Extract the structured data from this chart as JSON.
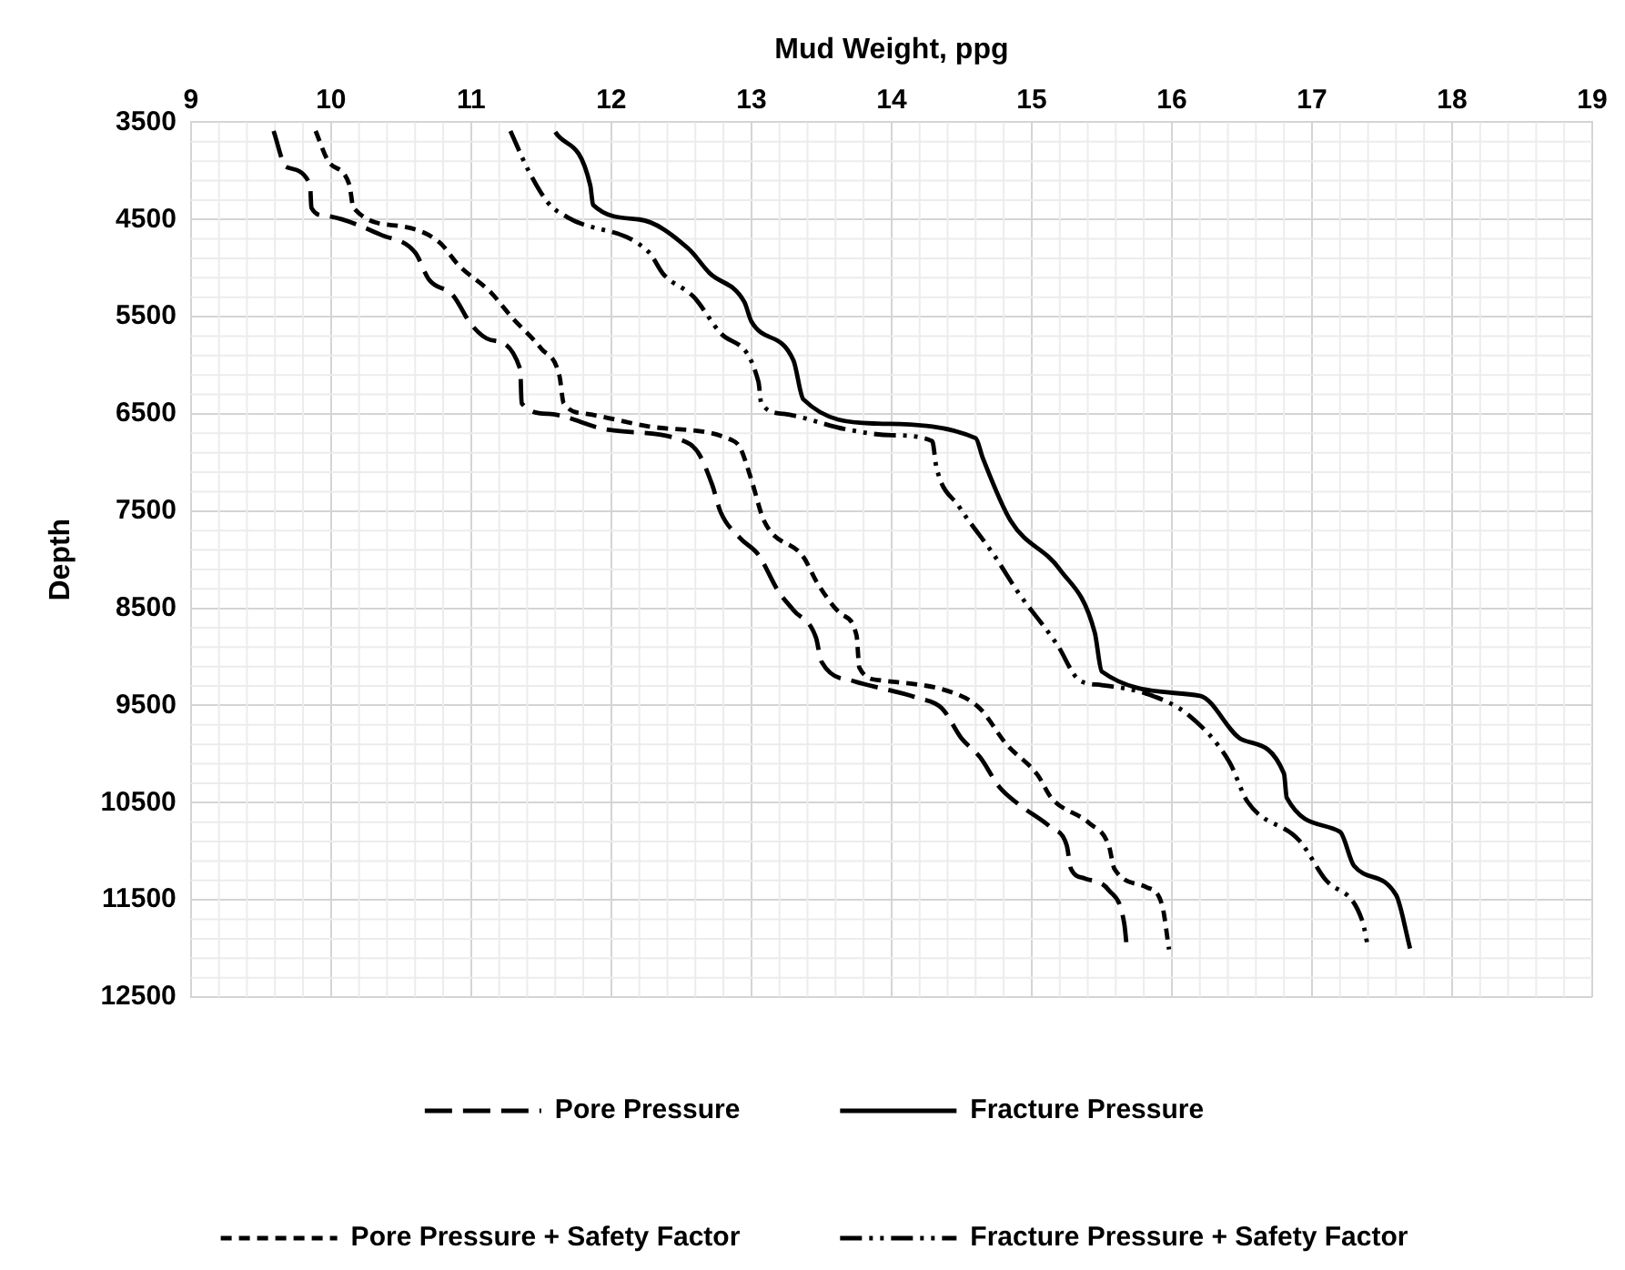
{
  "chart_data": {
    "type": "line",
    "xlabel": "Mud Weight, ppg",
    "ylabel": "Depth",
    "xlim": [
      9,
      19
    ],
    "xticks": [
      9,
      10,
      11,
      12,
      13,
      14,
      15,
      16,
      17,
      18,
      19
    ],
    "ylim": [
      12500,
      3500
    ],
    "yticks": [
      3500,
      4500,
      5500,
      6500,
      7500,
      8500,
      9500,
      10500,
      11500,
      12500
    ],
    "grid": true,
    "legend": "bottom",
    "marker": "none",
    "series": [
      {
        "name": "Pore Pressure",
        "color": "#000000",
        "line_style": "dashed",
        "x": [
          9.59,
          9.68,
          9.85,
          9.86,
          9.95,
          10.36,
          10.6,
          10.7,
          10.87,
          11.0,
          11.14,
          11.35,
          11.36,
          11.55,
          11.96,
          12.5,
          12.62,
          12.72,
          12.78,
          12.92,
          13.05,
          13.19,
          13.3,
          13.46,
          13.5,
          13.73,
          14.18,
          14.36,
          14.5,
          14.63,
          14.77,
          14.91,
          15.14,
          15.25,
          15.28,
          15.38,
          15.55,
          15.66,
          15.68
        ],
        "values": [
          3590,
          3960,
          4140,
          4380,
          4460,
          4660,
          4840,
          5120,
          5280,
          5580,
          5740,
          6040,
          6390,
          6500,
          6660,
          6770,
          6900,
          7230,
          7510,
          7780,
          7950,
          8320,
          8520,
          8800,
          9050,
          9250,
          9420,
          9530,
          9840,
          10030,
          10340,
          10520,
          10760,
          10940,
          11180,
          11280,
          11400,
          11740,
          12010
        ]
      },
      {
        "name": "Fracture Pressure",
        "color": "#000000",
        "line_style": "solid",
        "x": [
          11.6,
          11.85,
          11.87,
          12.2,
          12.55,
          12.7,
          12.95,
          13.0,
          13.3,
          13.37,
          13.9,
          14.6,
          14.65,
          14.85,
          15.2,
          15.45,
          15.5,
          16.2,
          16.5,
          16.8,
          16.82,
          17.2,
          17.3,
          17.6,
          17.7
        ],
        "values": [
          3600,
          4150,
          4350,
          4500,
          4800,
          5050,
          5350,
          5550,
          5950,
          6350,
          6600,
          6750,
          6950,
          7600,
          8100,
          8750,
          9150,
          9400,
          9850,
          10200,
          10450,
          10800,
          11150,
          11450,
          12000
        ]
      },
      {
        "name": "Pore Pressure + Safety Factor",
        "color": "#000000",
        "line_style": "dotted",
        "x": [
          9.89,
          9.98,
          10.13,
          10.16,
          10.5,
          10.77,
          10.91,
          11.14,
          11.28,
          11.5,
          11.63,
          11.66,
          11.82,
          12.27,
          12.86,
          12.92,
          13.0,
          13.09,
          13.37,
          13.47,
          13.64,
          13.75,
          13.77,
          13.91,
          14.46,
          14.63,
          14.82,
          15.04,
          15.14,
          15.41,
          15.55,
          15.59,
          15.82,
          15.93,
          15.98
        ],
        "values": [
          3590,
          3900,
          4140,
          4380,
          4570,
          4730,
          4970,
          5250,
          5490,
          5830,
          6110,
          6390,
          6500,
          6630,
          6770,
          6850,
          7180,
          7600,
          7970,
          8240,
          8560,
          8780,
          9110,
          9240,
          9380,
          9530,
          9900,
          10210,
          10450,
          10710,
          10940,
          11180,
          11370,
          11550,
          12010
        ]
      },
      {
        "name": "Fracture Pressure + Safety Factor",
        "color": "#000000",
        "line_style": "dashdot",
        "x": [
          11.28,
          11.41,
          11.55,
          11.69,
          12.27,
          12.37,
          12.59,
          12.78,
          13.05,
          13.07,
          13.23,
          13.68,
          14.0,
          14.29,
          14.32,
          14.48,
          14.73,
          14.9,
          15.18,
          15.34,
          15.5,
          15.82,
          16.12,
          16.41,
          16.54,
          16.91,
          17.09,
          17.36,
          17.4
        ],
        "values": [
          3590,
          4000,
          4330,
          4480,
          4840,
          5060,
          5300,
          5670,
          6170,
          6390,
          6500,
          6660,
          6720,
          6780,
          7050,
          7450,
          7950,
          8330,
          8870,
          9240,
          9290,
          9380,
          9600,
          10080,
          10490,
          10890,
          11280,
          11720,
          11990
        ]
      }
    ]
  }
}
